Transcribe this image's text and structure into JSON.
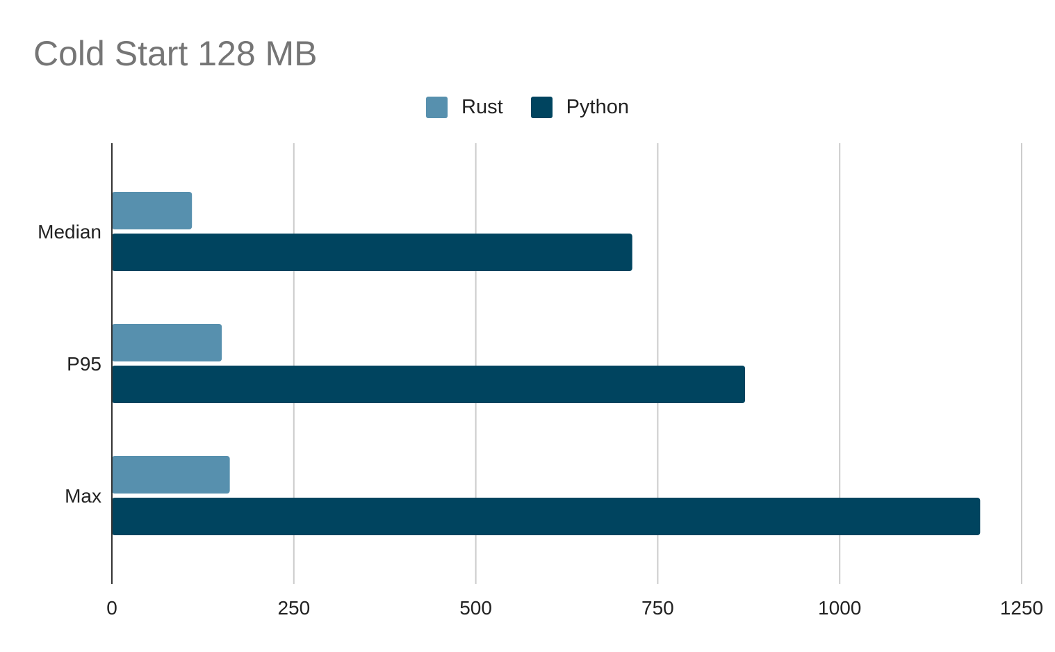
{
  "chart_data": {
    "type": "bar",
    "orientation": "horizontal",
    "title": "Cold Start 128 MB",
    "xlabel": "",
    "ylabel": "",
    "categories": [
      "Median",
      "P95",
      "Max"
    ],
    "series": [
      {
        "name": "Rust",
        "color": "#5790ae",
        "values": [
          110,
          151,
          162
        ]
      },
      {
        "name": "Python",
        "color": "#00445f",
        "values": [
          715,
          870,
          1193
        ]
      }
    ],
    "xlim": [
      0,
      1250
    ],
    "xticks": [
      "0",
      "250",
      "500",
      "750",
      "1000",
      "1250"
    ],
    "grid": true,
    "legend_position": "top-center"
  }
}
